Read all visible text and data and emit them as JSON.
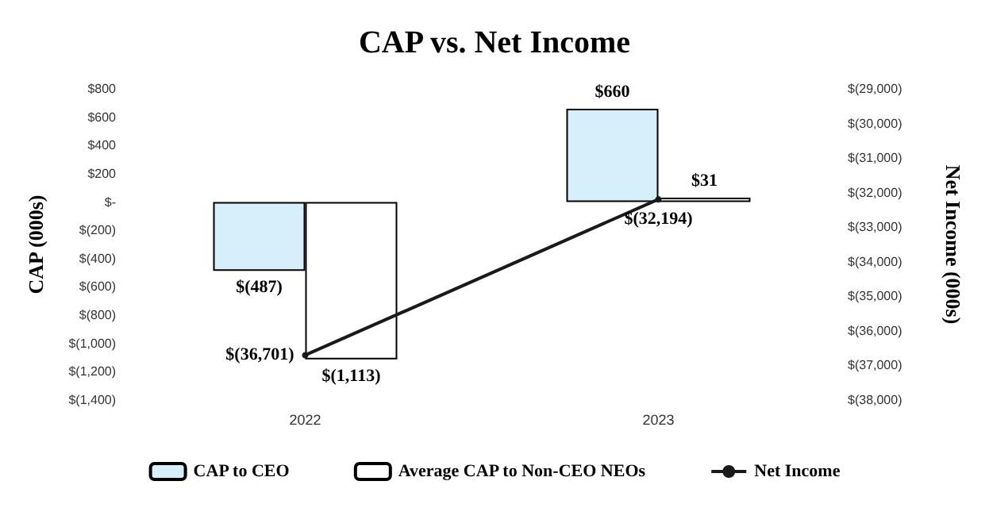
{
  "chart_data": {
    "type": "bar",
    "title": "CAP vs. Net Income",
    "ylabel": "CAP (000s)",
    "y2label": "Net Income (000s)",
    "categories": [
      "2022",
      "2023"
    ],
    "series": [
      {
        "name": "CAP to CEO",
        "color": "#d6effa",
        "values": [
          -487,
          660
        ],
        "value_labels": [
          "$(487)",
          "$660"
        ]
      },
      {
        "name": "Average CAP to Non-CEO NEOs",
        "color": "#ffffff",
        "values": [
          -1113,
          31
        ],
        "value_labels": [
          "$(1,113)",
          "$31"
        ]
      },
      {
        "name": "Net Income",
        "type": "line",
        "axis": "y2",
        "color": "#1a1a1a",
        "marker": "circle",
        "values": [
          -36701,
          -32194
        ],
        "value_labels": [
          "$(36,701)",
          "$(32,194)"
        ]
      }
    ],
    "ylim": [
      -1400,
      800
    ],
    "yticks": [
      {
        "value": 800,
        "label": "$800"
      },
      {
        "value": 600,
        "label": "$600"
      },
      {
        "value": 400,
        "label": "$400"
      },
      {
        "value": 200,
        "label": "$200"
      },
      {
        "value": 0,
        "label": "$-"
      },
      {
        "value": -200,
        "label": "$(200)"
      },
      {
        "value": -400,
        "label": "$(400)"
      },
      {
        "value": -600,
        "label": "$(600)"
      },
      {
        "value": -800,
        "label": "$(800)"
      },
      {
        "value": -1000,
        "label": "$(1,000)"
      },
      {
        "value": -1200,
        "label": "$(1,200)"
      },
      {
        "value": -1400,
        "label": "$(1,400)"
      }
    ],
    "y2lim": [
      -38000,
      -29000
    ],
    "y2ticks": [
      {
        "value": -29000,
        "label": "$(29,000)"
      },
      {
        "value": -30000,
        "label": "$(30,000)"
      },
      {
        "value": -31000,
        "label": "$(31,000)"
      },
      {
        "value": -32000,
        "label": "$(32,000)"
      },
      {
        "value": -33000,
        "label": "$(33,000)"
      },
      {
        "value": -34000,
        "label": "$(34,000)"
      },
      {
        "value": -35000,
        "label": "$(35,000)"
      },
      {
        "value": -36000,
        "label": "$(36,000)"
      },
      {
        "value": -37000,
        "label": "$(37,000)"
      },
      {
        "value": -38000,
        "label": "$(38,000)"
      }
    ],
    "grid": false,
    "legend": "bottom"
  }
}
